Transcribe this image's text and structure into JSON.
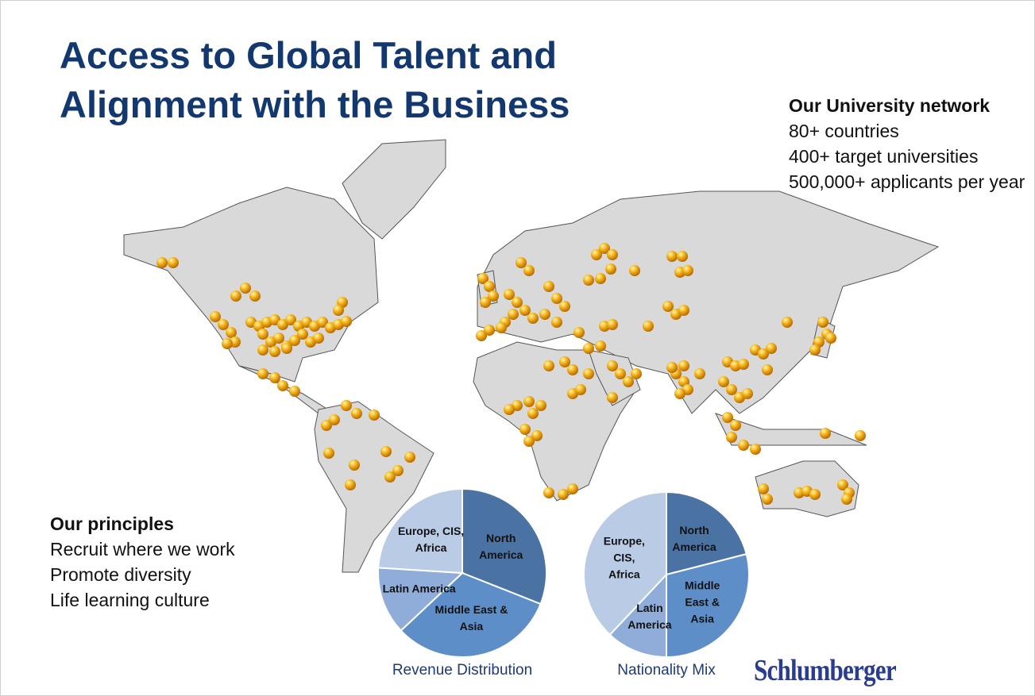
{
  "title": "Access to Global Talent and Alignment with the Business",
  "network": {
    "heading": "Our University network",
    "items": [
      "80+ countries",
      "400+ target universities",
      "500,000+ applicants per year"
    ]
  },
  "principles": {
    "heading": "Our principles",
    "items": [
      "Recruit where we work",
      "Promote diversity",
      "Life learning culture"
    ]
  },
  "logo": "Schlumberger",
  "chart_data": [
    {
      "type": "pie",
      "title": "Revenue Distribution",
      "categories": [
        "North America",
        "Middle East & Asia",
        "Latin America",
        "Europe, CIS, Africa"
      ],
      "values": [
        31,
        32,
        13,
        24
      ],
      "colors": [
        "#4a72a3",
        "#5d8ec8",
        "#8fadd8",
        "#bacbe5"
      ]
    },
    {
      "type": "pie",
      "title": "Nationality Mix",
      "categories": [
        "North America",
        "Middle East & Asia",
        "Latin America",
        "Europe, CIS, Africa"
      ],
      "values": [
        21,
        29,
        12,
        38
      ],
      "colors": [
        "#4a72a3",
        "#5d8ec8",
        "#8fadd8",
        "#bacbe5"
      ]
    }
  ]
}
